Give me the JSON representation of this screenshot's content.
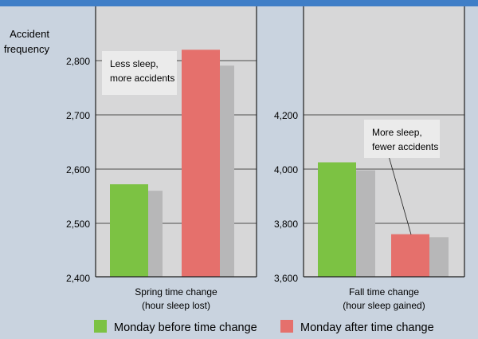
{
  "y_title_line1": "Accident",
  "y_title_line2": "frequency",
  "colors": {
    "background": "#c9d3df",
    "panel": "#d7d7d8",
    "top_rule": "#3f7ec7",
    "before": "#7cc243",
    "after": "#e5706c",
    "shadow": "#b7b7b8",
    "grid": "#1e1e1e"
  },
  "chart_data": [
    {
      "type": "bar",
      "title": "",
      "xlabel_line1": "Spring time change",
      "xlabel_line2": "(hour sleep lost)",
      "ylabel": "Accident frequency",
      "ylim": [
        2400,
        2900
      ],
      "yticks": [
        2400,
        2500,
        2600,
        2700,
        2800
      ],
      "ytick_labels": [
        "2,400",
        "2,500",
        "2,600",
        "2,700",
        "2,800"
      ],
      "grid": true,
      "series": [
        {
          "name": "Monday before time change",
          "values": [
            2572
          ]
        },
        {
          "name": "Monday after time change",
          "values": [
            2820
          ]
        }
      ],
      "annotation": {
        "line1": "Less sleep,",
        "line2": "more accidents"
      }
    },
    {
      "type": "bar",
      "title": "",
      "xlabel_line1": "Fall time change",
      "xlabel_line2": "(hour sleep gained)",
      "ylabel": "Accident frequency",
      "ylim": [
        3600,
        4600
      ],
      "yticks": [
        3600,
        3800,
        4000,
        4200
      ],
      "ytick_labels": [
        "3,600",
        "3,800",
        "4,000",
        "4,200"
      ],
      "grid": true,
      "series": [
        {
          "name": "Monday before time change",
          "values": [
            4025
          ]
        },
        {
          "name": "Monday after time change",
          "values": [
            3760
          ]
        }
      ],
      "annotation": {
        "line1": "More sleep,",
        "line2": "fewer accidents"
      }
    }
  ],
  "legend": [
    {
      "label": "Monday before time change",
      "color": "#7cc243"
    },
    {
      "label": "Monday after time change",
      "color": "#e5706c"
    }
  ]
}
